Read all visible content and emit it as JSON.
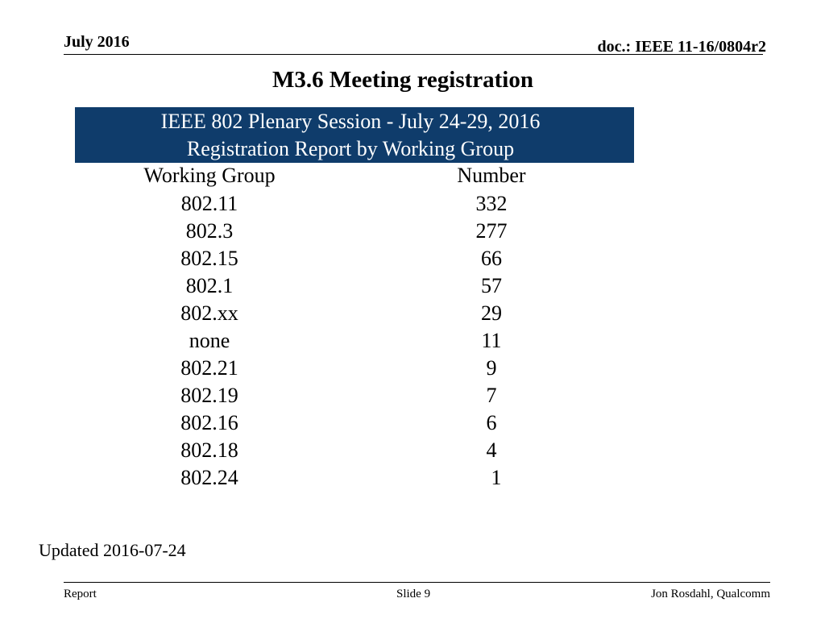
{
  "header": {
    "date": "July 2016",
    "doc_id": "doc.: IEEE 11-16/0804r2"
  },
  "title": "M3.6  Meeting registration",
  "banner": {
    "line1": "IEEE 802 Plenary Session - July 24-29, 2016",
    "line2": "Registration Report by Working Group"
  },
  "table": {
    "columns": [
      "Working Group",
      "Number"
    ],
    "rows": [
      [
        "802.11",
        "332"
      ],
      [
        "802.3",
        "277"
      ],
      [
        "802.15",
        "66"
      ],
      [
        "802.1",
        "57"
      ],
      [
        "802.xx",
        "29"
      ],
      [
        "none",
        "11"
      ],
      [
        "802.21",
        "9"
      ],
      [
        "802.19",
        "7"
      ],
      [
        "802.16",
        "6"
      ],
      [
        "802.18",
        "4"
      ],
      [
        "802.24",
        "1"
      ]
    ]
  },
  "updated": "Updated 2016-07-24",
  "footer": {
    "left": "Report",
    "center": "Slide 9",
    "right": "Jon Rosdahl, Qualcomm"
  }
}
